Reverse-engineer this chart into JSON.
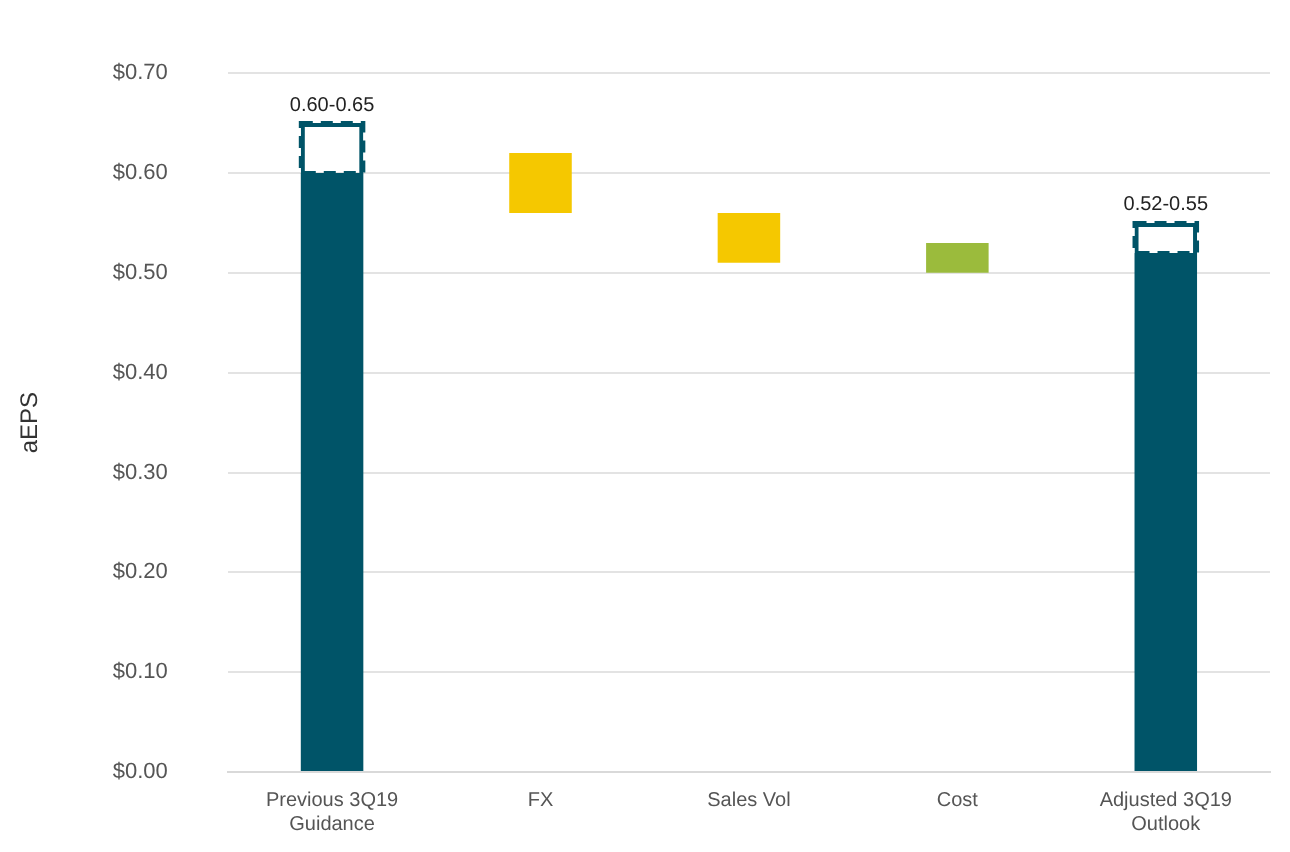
{
  "chart_data": {
    "type": "bar",
    "ylabel": "aEPS",
    "categories": [
      "Previous 3Q19\nGuidance",
      "FX",
      "Sales Vol",
      "Cost",
      "Adjusted 3Q19\nOutlook"
    ],
    "series": [
      {
        "type": "bar",
        "colors": [
          "#005468",
          "#f5c800",
          "#f5c800",
          "#9bbb3c",
          "#005468"
        ],
        "base": [
          0,
          0.62,
          0.56,
          0.5,
          0
        ],
        "values": [
          0.6,
          -0.06,
          -0.05,
          0.03,
          0.52
        ]
      },
      {
        "type": "bar",
        "color": "#005468",
        "line_style": "dashed",
        "base": [
          0.6,
          null,
          null,
          null,
          0.52
        ],
        "values": [
          0.05,
          null,
          null,
          null,
          0.03
        ],
        "value_labels": [
          "0.60-0.65",
          null,
          null,
          null,
          "0.52-0.55"
        ]
      }
    ],
    "ylim": [
      0,
      0.7
    ],
    "yticks": [
      {
        "value": 0,
        "label": "$0.00"
      },
      {
        "value": 0.1,
        "label": "$0.10"
      },
      {
        "value": 0.2,
        "label": "$0.20"
      },
      {
        "value": 0.3,
        "label": "$0.30"
      },
      {
        "value": 0.4,
        "label": "$0.40"
      },
      {
        "value": 0.5,
        "label": "$0.50"
      },
      {
        "value": 0.6,
        "label": "$0.60"
      },
      {
        "value": 0.7,
        "label": "$0.70"
      }
    ],
    "grid": "y",
    "legend": false
  }
}
